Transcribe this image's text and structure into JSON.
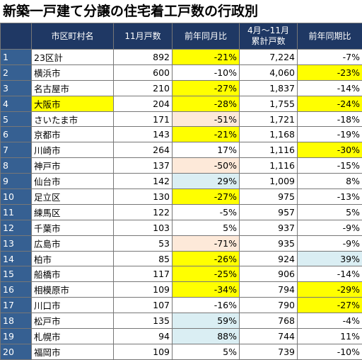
{
  "title": "新築一戸建て分譲の住宅着工戸数の行政別",
  "table": {
    "header": [
      "",
      "市区町村名",
      "11月戸数",
      "前年同月比",
      "4月～11月\n累計戸数",
      "前年同期比"
    ],
    "rows": [
      [
        "1",
        "23区計",
        "892",
        "-21%",
        "7,224",
        "-7%"
      ],
      [
        "2",
        "横浜市",
        "600",
        "-10%",
        "4,060",
        "-23%"
      ],
      [
        "3",
        "名古屋市",
        "210",
        "-27%",
        "1,837",
        "-14%"
      ],
      [
        "4",
        "大阪市",
        "204",
        "-28%",
        "1,755",
        "-24%"
      ],
      [
        "5",
        "さいたま市",
        "171",
        "-51%",
        "1,721",
        "-18%"
      ],
      [
        "6",
        "京都市",
        "143",
        "-21%",
        "1,168",
        "-19%"
      ],
      [
        "7",
        "川崎市",
        "264",
        "17%",
        "1,116",
        "-30%"
      ],
      [
        "8",
        "神戸市",
        "137",
        "-50%",
        "1,116",
        "-15%"
      ],
      [
        "9",
        "仙台市",
        "142",
        "29%",
        "1,009",
        "8%"
      ],
      [
        "10",
        "足立区",
        "130",
        "-27%",
        "975",
        "-13%"
      ],
      [
        "11",
        "練馬区",
        "122",
        "-5%",
        "957",
        "5%"
      ],
      [
        "12",
        "千葉市",
        "103",
        "5%",
        "937",
        "-9%"
      ],
      [
        "13",
        "広島市",
        "53",
        "-71%",
        "935",
        "-9%"
      ],
      [
        "14",
        "柏市",
        "85",
        "-26%",
        "924",
        "39%"
      ],
      [
        "15",
        "船橋市",
        "117",
        "-25%",
        "906",
        "-14%"
      ],
      [
        "16",
        "相模原市",
        "109",
        "-34%",
        "794",
        "-29%"
      ],
      [
        "17",
        "川口市",
        "107",
        "-16%",
        "790",
        "-27%"
      ],
      [
        "18",
        "松戸市",
        "135",
        "59%",
        "768",
        "-4%"
      ],
      [
        "19",
        "札幌市",
        "94",
        "88%",
        "744",
        "11%"
      ],
      [
        "20",
        "福岡市",
        "109",
        "5%",
        "739",
        "-10%"
      ]
    ],
    "highlights": [
      {
        "row": 0,
        "col": 3,
        "color": "#ffff00"
      },
      {
        "row": 1,
        "col": 5,
        "color": "#ffff00"
      },
      {
        "row": 2,
        "col": 3,
        "color": "#ffff00"
      },
      {
        "row": 3,
        "col": 1,
        "color": "#ffff00"
      },
      {
        "row": 3,
        "col": 3,
        "color": "#ffff00"
      },
      {
        "row": 3,
        "col": 5,
        "color": "#ffff00"
      },
      {
        "row": 4,
        "col": 3,
        "color": "#fde9d9"
      },
      {
        "row": 5,
        "col": 3,
        "color": "#ffff00"
      },
      {
        "row": 6,
        "col": 5,
        "color": "#ffff00"
      },
      {
        "row": 7,
        "col": 3,
        "color": "#fde9d9"
      },
      {
        "row": 8,
        "col": 3,
        "color": "#daeef3"
      },
      {
        "row": 9,
        "col": 3,
        "color": "#ffff00"
      },
      {
        "row": 12,
        "col": 3,
        "color": "#fde9d9"
      },
      {
        "row": 13,
        "col": 3,
        "color": "#ffff00"
      },
      {
        "row": 13,
        "col": 5,
        "color": "#daeef3"
      },
      {
        "row": 14,
        "col": 3,
        "color": "#ffff00"
      },
      {
        "row": 15,
        "col": 3,
        "color": "#ffff00"
      },
      {
        "row": 15,
        "col": 5,
        "color": "#ffff00"
      },
      {
        "row": 16,
        "col": 5,
        "color": "#ffff00"
      },
      {
        "row": 17,
        "col": 3,
        "color": "#daeef3"
      },
      {
        "row": 18,
        "col": 3,
        "color": "#daeef3"
      }
    ]
  }
}
